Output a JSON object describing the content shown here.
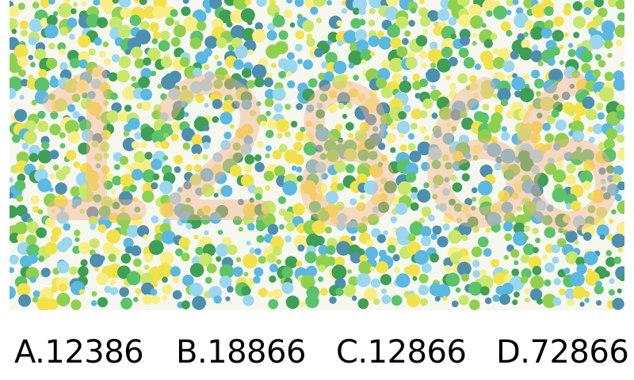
{
  "plate": {
    "hidden_digits_icon": "color-blindness-test-plate",
    "dot_colors": [
      "#8fd14f",
      "#5cc36a",
      "#3e9f55",
      "#f2e24a",
      "#f7ef86",
      "#5bb8e0",
      "#4d8fae",
      "#9bd7ef",
      "#c9e76a"
    ],
    "numeral_color": "#f5b38a"
  },
  "options": [
    {
      "label": "A.12386"
    },
    {
      "label": "B.18866"
    },
    {
      "label": "C.12866"
    },
    {
      "label": "D.72866"
    }
  ]
}
